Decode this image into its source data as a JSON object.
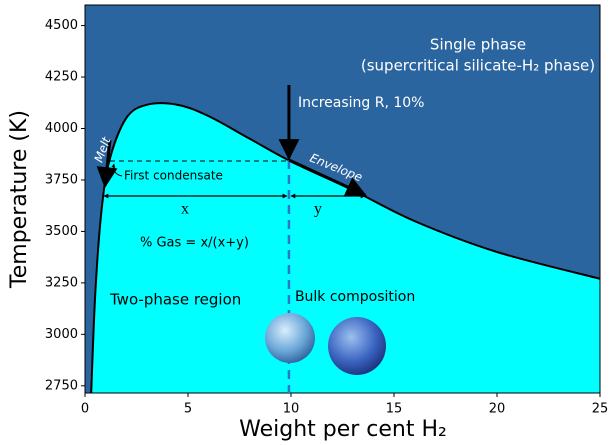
{
  "chart_data": {
    "type": "area",
    "x_label": "Weight per cent H₂",
    "y_label": "Temperature (K)",
    "xlim": [
      0,
      25
    ],
    "ylim": [
      2715,
      4600
    ],
    "xticks": [
      0,
      5,
      10,
      15,
      20,
      25
    ],
    "yticks": [
      2750,
      3000,
      3250,
      3500,
      3750,
      4000,
      4250,
      4500
    ],
    "background_color": "#2b65a0",
    "series": [
      {
        "name": "Phase boundary",
        "color": "#00ffff",
        "x": [
          0.3,
          0.5,
          0.8,
          1.2,
          2,
          3,
          4.5,
          6,
          8,
          10,
          13,
          16,
          20,
          25
        ],
        "values": [
          2715,
          3200,
          3600,
          3850,
          4050,
          4115,
          4115,
          4060,
          3950,
          3840,
          3700,
          3550,
          3400,
          3270
        ]
      }
    ],
    "bulk_composition": {
      "label": "Bulk composition",
      "x": 9.9
    },
    "annotations": {
      "single_phase": "Single phase",
      "single_phase_sub": "(supercritical silicate-H₂ phase)",
      "increasing_r": "Increasing R, 10%",
      "melt": "Melt",
      "envelope": "Envelope",
      "first_condensate": "First condensate",
      "x": "x",
      "y": "y",
      "gas_formula": "% Gas = x/(x+y)",
      "two_phase": "Two-phase region"
    }
  }
}
